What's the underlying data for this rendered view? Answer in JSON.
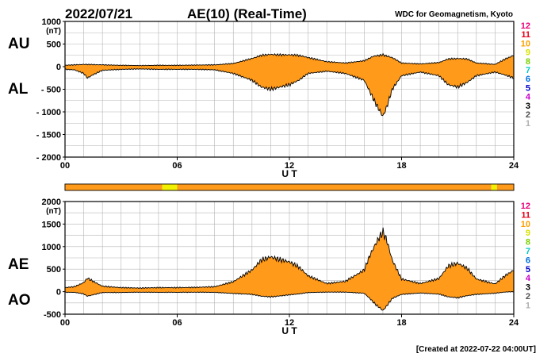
{
  "header": {
    "date": "2022/07/21",
    "title": "AE(10) (Real-Time)",
    "source": "WDC for Geomagnetism, Kyoto"
  },
  "footer": {
    "created": "[Created at 2022-07-22 04:00UT]"
  },
  "station_legend": {
    "labels": [
      "12",
      "11",
      "10",
      "9",
      "8",
      "7",
      "6",
      "5",
      "4",
      "3",
      "2",
      "1"
    ],
    "colors": [
      "#e8007a",
      "#e8001a",
      "#ffa000",
      "#d8e000",
      "#7ad000",
      "#00c8c8",
      "#0070e0",
      "#0000c8",
      "#c800c8",
      "#000000",
      "#505050",
      "#b0b0b0"
    ]
  },
  "colors": {
    "fill": "#ff9a1a",
    "envelope": "#000000",
    "grid": "#b4b4b4",
    "highlight": "#f0f000"
  },
  "chart_data": [
    {
      "type": "area",
      "panel": "AU/AL",
      "labels": {
        "upper": "AU",
        "lower": "AL"
      },
      "xlabel": "U T",
      "unit": "(nT)",
      "xlim": [
        0,
        24
      ],
      "x_ticks": [
        "00",
        "06",
        "12",
        "18",
        "24"
      ],
      "ylim": [
        -2000,
        1000
      ],
      "y_ticks": [
        "1000",
        "500",
        "0",
        "- 500",
        "- 1000",
        "- 1500",
        "- 2000"
      ],
      "grid": true,
      "series": [
        {
          "name": "AU",
          "x": [
            0,
            0.5,
            1,
            1.5,
            2,
            3,
            4,
            5,
            6,
            7,
            8,
            9,
            10,
            10.5,
            11,
            11.5,
            12,
            12.5,
            13,
            14,
            15,
            16,
            16.5,
            17,
            17.5,
            18,
            19,
            20,
            20.5,
            21,
            21.5,
            22,
            23,
            23.5,
            24
          ],
          "values": [
            30,
            40,
            50,
            45,
            40,
            30,
            25,
            30,
            30,
            35,
            40,
            70,
            180,
            250,
            270,
            260,
            260,
            250,
            200,
            110,
            80,
            130,
            230,
            260,
            200,
            80,
            60,
            90,
            170,
            180,
            170,
            80,
            50,
            160,
            250
          ]
        },
        {
          "name": "AL",
          "x": [
            0,
            0.5,
            1,
            1.2,
            1.5,
            2,
            3,
            4,
            5,
            6,
            7,
            8,
            9,
            10,
            10.5,
            11,
            11.5,
            12,
            12.5,
            13,
            14,
            15,
            16,
            16.3,
            16.6,
            16.8,
            17,
            17.2,
            17.5,
            18,
            19,
            20,
            20.5,
            21,
            21.5,
            22,
            23,
            23.5,
            24
          ],
          "values": [
            -60,
            -70,
            -150,
            -250,
            -180,
            -80,
            -60,
            -50,
            -60,
            -60,
            -60,
            -70,
            -150,
            -300,
            -450,
            -500,
            -450,
            -400,
            -300,
            -150,
            -100,
            -150,
            -300,
            -550,
            -800,
            -950,
            -1100,
            -900,
            -500,
            -200,
            -120,
            -200,
            -400,
            -450,
            -350,
            -200,
            -120,
            -180,
            -250
          ]
        }
      ]
    },
    {
      "type": "area",
      "panel": "AE/AO",
      "labels": {
        "upper": "AE",
        "lower": "AO"
      },
      "xlabel": "U T",
      "unit": "(nT)",
      "xlim": [
        0,
        24
      ],
      "x_ticks": [
        "00",
        "06",
        "12",
        "18",
        "24"
      ],
      "ylim": [
        -500,
        2000
      ],
      "y_ticks": [
        "2000",
        "1500",
        "1000",
        "500",
        "0",
        "-500"
      ],
      "grid": true,
      "series": [
        {
          "name": "AE",
          "x": [
            0,
            0.5,
            1,
            1.2,
            1.5,
            2,
            3,
            4,
            5,
            6,
            7,
            8,
            9,
            10,
            10.5,
            11,
            11.5,
            12,
            12.5,
            13,
            14,
            15,
            16,
            16.3,
            16.6,
            16.8,
            17,
            17.2,
            17.5,
            18,
            19,
            20,
            20.5,
            21,
            21.5,
            22,
            23,
            23.5,
            24
          ],
          "values": [
            90,
            110,
            200,
            300,
            230,
            120,
            90,
            80,
            90,
            90,
            95,
            110,
            220,
            480,
            700,
            770,
            710,
            660,
            550,
            350,
            180,
            230,
            480,
            800,
            1050,
            1200,
            1320,
            1150,
            700,
            280,
            180,
            290,
            570,
            630,
            520,
            280,
            170,
            340,
            480
          ]
        },
        {
          "name": "AO",
          "x": [
            0,
            0.5,
            1,
            1.2,
            1.5,
            2,
            3,
            4,
            5,
            6,
            7,
            8,
            9,
            10,
            10.5,
            11,
            11.5,
            12,
            12.5,
            13,
            14,
            15,
            16,
            16.3,
            16.6,
            16.8,
            17,
            17.2,
            17.5,
            18,
            19,
            20,
            20.5,
            21,
            21.5,
            22,
            23,
            23.5,
            24
          ],
          "values": [
            -15,
            -15,
            -50,
            -100,
            -70,
            -20,
            -18,
            -12,
            -15,
            -15,
            -12,
            -15,
            -40,
            -60,
            -100,
            -115,
            -95,
            -70,
            -50,
            -20,
            -10,
            -10,
            -35,
            -150,
            -280,
            -345,
            -420,
            -320,
            -150,
            -60,
            -30,
            -55,
            -115,
            -135,
            -90,
            -60,
            -35,
            -10,
            0
          ]
        }
      ]
    }
  ],
  "status_bar": {
    "segments": [
      {
        "start": 0,
        "end": 5.2,
        "level": "10"
      },
      {
        "start": 5.2,
        "end": 6.0,
        "level": "9"
      },
      {
        "start": 6.0,
        "end": 22.8,
        "level": "10"
      },
      {
        "start": 22.8,
        "end": 23.1,
        "level": "9"
      },
      {
        "start": 23.1,
        "end": 24,
        "level": "10"
      }
    ]
  }
}
